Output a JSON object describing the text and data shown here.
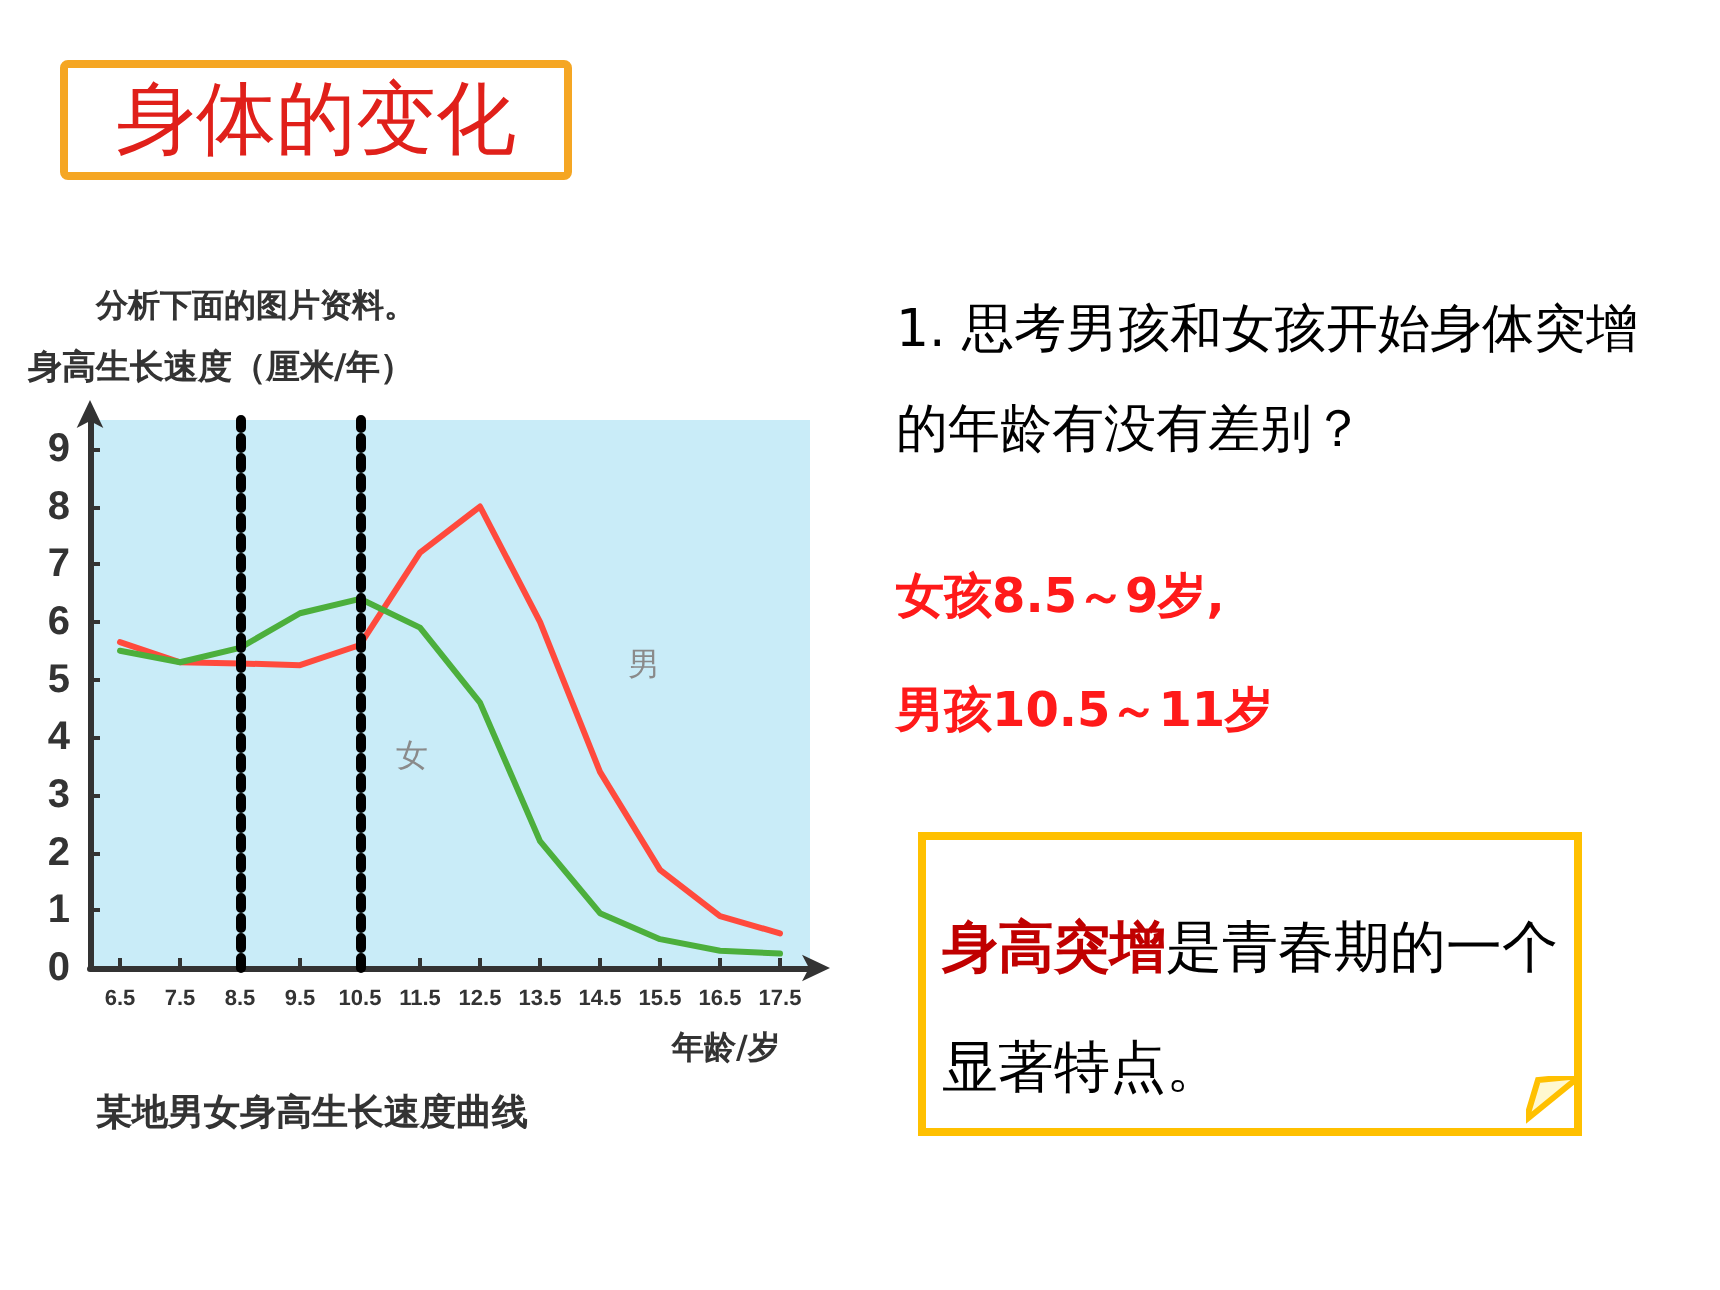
{
  "chart_data": {
    "type": "line",
    "title": "身体的变化",
    "subtitle": "分析下面的图片资料。",
    "ylabel": "身高生长速度（厘米/年）",
    "xlabel": "年龄/岁",
    "categories": [
      "6.5",
      "7.5",
      "8.5",
      "9.5",
      "10.5",
      "11.5",
      "12.5",
      "13.5",
      "14.5",
      "15.5",
      "16.5",
      "17.5"
    ],
    "series": [
      {
        "name": "男",
        "color": "#ff4a3d",
        "values": [
          5.65,
          5.3,
          5.28,
          5.25,
          5.6,
          7.2,
          8.0,
          6.0,
          3.4,
          1.7,
          0.9,
          0.6
        ]
      },
      {
        "name": "女",
        "color": "#4caf3c",
        "values": [
          5.5,
          5.3,
          5.55,
          6.15,
          6.4,
          5.9,
          4.6,
          2.2,
          0.95,
          0.5,
          0.3,
          0.25
        ]
      }
    ],
    "ylim": [
      0,
      9.5
    ],
    "yticks": [
      0,
      1,
      2,
      3,
      4,
      5,
      6,
      7,
      8,
      9
    ],
    "grid": false,
    "legend": false,
    "marker": "none",
    "line_style": "solid",
    "ref_lines": [
      {
        "axis": "x",
        "value": "8.5",
        "color": "#000000",
        "line_style": "dotted"
      },
      {
        "axis": "x",
        "value": "10.5",
        "color": "#000000",
        "line_style": "dotted"
      }
    ],
    "annotations": [
      "某地男女身高生长速度曲线",
      "1. 思考男孩和女孩开始身体突增的年龄有没有差别？",
      "女孩8.5～9岁,",
      "男孩10.5～11岁",
      "身高突增",
      "是青春期的一个显著特点。"
    ]
  }
}
